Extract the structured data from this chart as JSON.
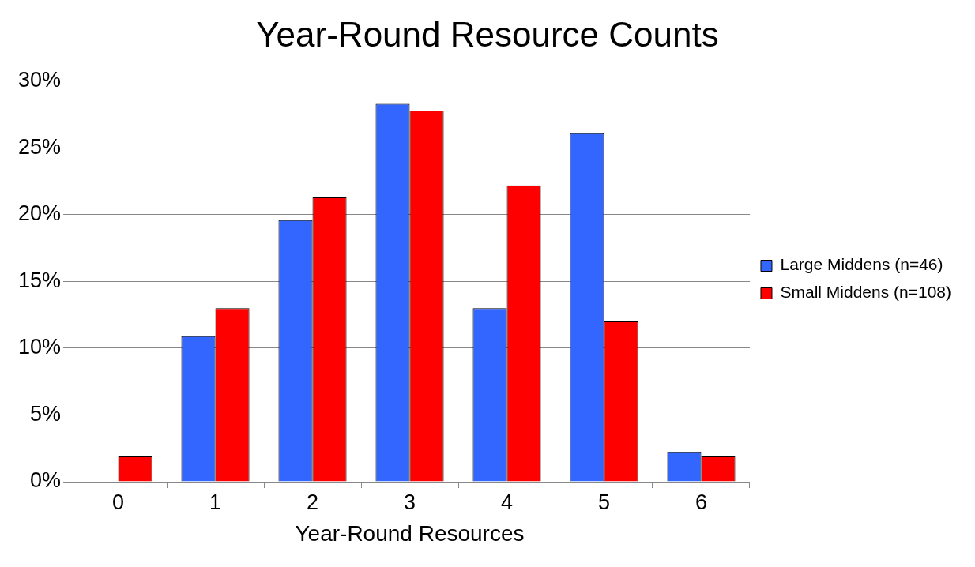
{
  "chart_data": {
    "type": "bar",
    "title": "Year-Round Resource Counts",
    "xlabel": "Year-Round Resources",
    "categories": [
      "0",
      "1",
      "2",
      "3",
      "4",
      "5",
      "6"
    ],
    "series": [
      {
        "name": "Large Middens (n=46)",
        "color": "#3366ff",
        "values": [
          0,
          10.9,
          19.6,
          28.3,
          13.0,
          26.1,
          2.2
        ]
      },
      {
        "name": "Small Middens (n=108)",
        "color": "#ff0000",
        "values": [
          1.9,
          13.0,
          21.3,
          27.8,
          22.2,
          12.0,
          1.9
        ]
      }
    ],
    "ylim": [
      0,
      30
    ],
    "yticks": [
      {
        "value": 0,
        "label": "0%"
      },
      {
        "value": 5,
        "label": "5%"
      },
      {
        "value": 10,
        "label": "10%"
      },
      {
        "value": 15,
        "label": "15%"
      },
      {
        "value": 20,
        "label": "20%"
      },
      {
        "value": 25,
        "label": "25%"
      },
      {
        "value": 30,
        "label": "30%"
      }
    ],
    "grid": "y",
    "legend": "right"
  }
}
